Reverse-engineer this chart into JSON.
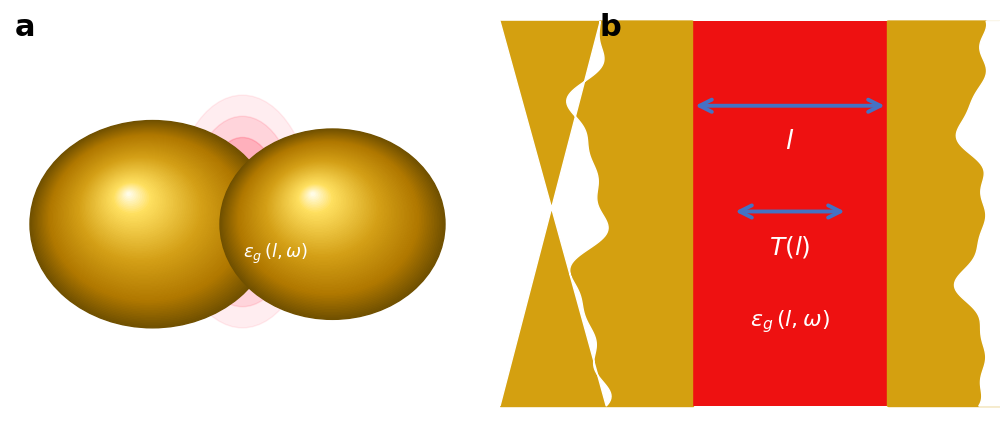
{
  "fig_width": 10.0,
  "fig_height": 4.23,
  "label_a": "a",
  "label_b": "b",
  "label_fontsize": 22,
  "label_fontweight": "bold",
  "gold_color": "#D4A017",
  "gold_inner": "#C89010",
  "gold_dark": "#8B6000",
  "red_color": "#EE1111",
  "blue_arrow_color": "#4472C4",
  "text_color_white": "#FFFFFF"
}
